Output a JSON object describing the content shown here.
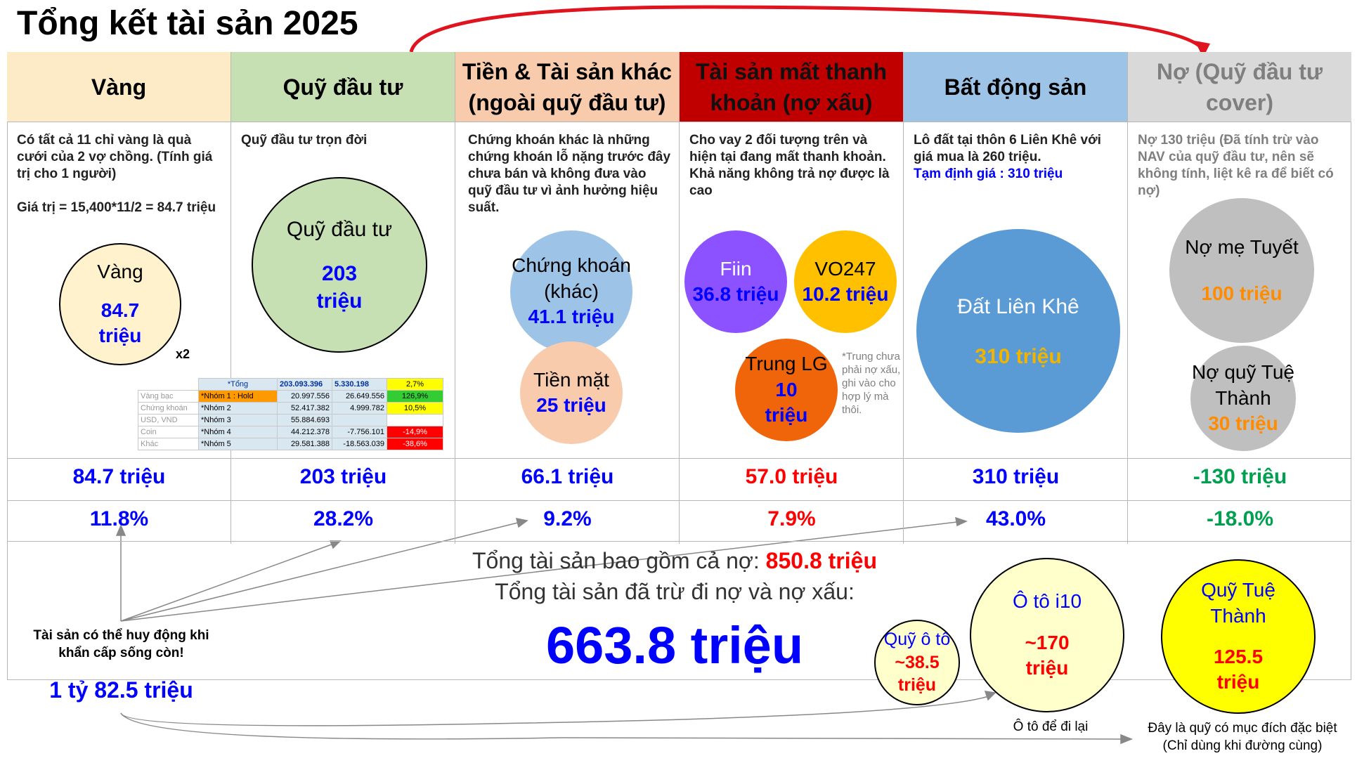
{
  "title": "Tổng kết tài sản 2025",
  "columns": [
    {
      "header": "Vàng",
      "color": "#fdebc8",
      "desc": "Có tất cả 11 chỉ vàng là quà cưới của 2 vợ chồng. (Tính giá trị cho 1 người)",
      "desc2": "Giá trị = 15,400*11/2 = 84.7 triệu",
      "total": "84.7 triệu",
      "percent": "11.8%"
    },
    {
      "header": "Quỹ đầu tư",
      "color": "#c6e0b4",
      "desc": "Quỹ đầu tư trọn đời",
      "total": "203 triệu",
      "percent": "28.2%"
    },
    {
      "header": "Tiền & Tài sản khác (ngoài quỹ đầu tư)",
      "color": "#f8cbad",
      "desc": "Chứng khoán khác là những chứng khoán lỗ nặng trước đây chưa bán và không đưa vào quỹ đầu tư vì ảnh hưởng hiệu suất.",
      "total": "66.1 triệu",
      "percent": "9.2%"
    },
    {
      "header": "Tài sản mất thanh khoản (nợ xấu)",
      "color": "#c00000",
      "desc": "Cho vay 2 đối tượng trên và hiện tại đang mất thanh khoản. Khả năng không trả nợ được là cao",
      "total": "57.0 triệu",
      "percent": "7.9%"
    },
    {
      "header": "Bất động sản",
      "color": "#9dc3e6",
      "desc": "Lô đất tại thôn 6 Liên Khê với giá mua là 260 triệu.",
      "desc2": "Tạm định giá : 310 triệu",
      "total": "310 triệu",
      "percent": "43.0%"
    },
    {
      "header": "Nợ (Quỹ đầu tư cover)",
      "color": "#d9d9d9",
      "desc": "Nợ 130 triệu (Đã tính trừ vào NAV của quỹ đầu tư, nên sẽ không tính, liệt kê ra để biết có nợ)",
      "total": "-130 triệu",
      "percent": "-18.0%"
    }
  ],
  "bubbles": {
    "vang": {
      "label": "Vàng",
      "value": "84.7 triệu",
      "mult": "x2"
    },
    "quy": {
      "label": "Quỹ đầu tư",
      "value": "203 triệu"
    },
    "ck": {
      "label": "Chứng khoán (khác)",
      "value": "41.1 triệu"
    },
    "tien": {
      "label": "Tiền mặt",
      "value": "25 triệu"
    },
    "fiin": {
      "label": "Fiin",
      "value": "36.8 triệu"
    },
    "vo": {
      "label": "VO247",
      "value": "10.2 triệu"
    },
    "trung": {
      "label": "Trung LG",
      "value": "10 triệu"
    },
    "trung_note": "*Trung chưa phải nợ xấu, ghi vào cho hợp lý mà thôi.",
    "dat": {
      "label": "Đất Liên Khê",
      "value": "310 triệu"
    },
    "nome": {
      "label": "Nợ mẹ Tuyết",
      "value": "100 triệu"
    },
    "noquy": {
      "label": "Nợ quỹ Tuệ Thành",
      "value": "30 triệu"
    }
  },
  "mini_table": {
    "header": [
      "*Tổng",
      "203.093.396",
      "5.330.198",
      "2,7%"
    ],
    "rows": [
      [
        "Vàng bạc",
        "*Nhóm 1 : Hold",
        "20.997.556",
        "26.649.556",
        "126,9%"
      ],
      [
        "Chứng khoán",
        "*Nhóm 2",
        "52.417.382",
        "4.999.782",
        "10,5%"
      ],
      [
        "USD, VND",
        "*Nhóm 3",
        "55.884.693",
        "",
        ""
      ],
      [
        "Coin",
        "*Nhóm 4",
        "44.212.378",
        "-7.756.101",
        "-14,9%"
      ],
      [
        "Khác",
        "*Nhóm 5",
        "29.581.388",
        "-18.563.039",
        "-38,6%"
      ]
    ]
  },
  "summary": {
    "line1_prefix": "Tổng tài sản bao gồm cả nợ: ",
    "line1_value": "850.8 triệu",
    "line2": "Tổng tài sản đã trừ đi nợ và nợ xấu:",
    "big": "663.8 triệu"
  },
  "emergency": {
    "label": "Tài sản có thể huy động khi khẩn cấp sống còn!",
    "value": "1 tỷ 82.5 triệu"
  },
  "extras": {
    "quy_oto": {
      "label": "Quỹ ô tô",
      "value": "~38.5 triệu"
    },
    "oto": {
      "label": "Ô tô i10",
      "value": "~170 triệu",
      "caption": "Ô tô để đi lại"
    },
    "tue": {
      "label": "Quỹ Tuệ Thành",
      "value": "125.5 triệu",
      "caption": "Đây là quỹ có mục đích đặc biệt (Chỉ dùng khi đường cùng)"
    }
  }
}
